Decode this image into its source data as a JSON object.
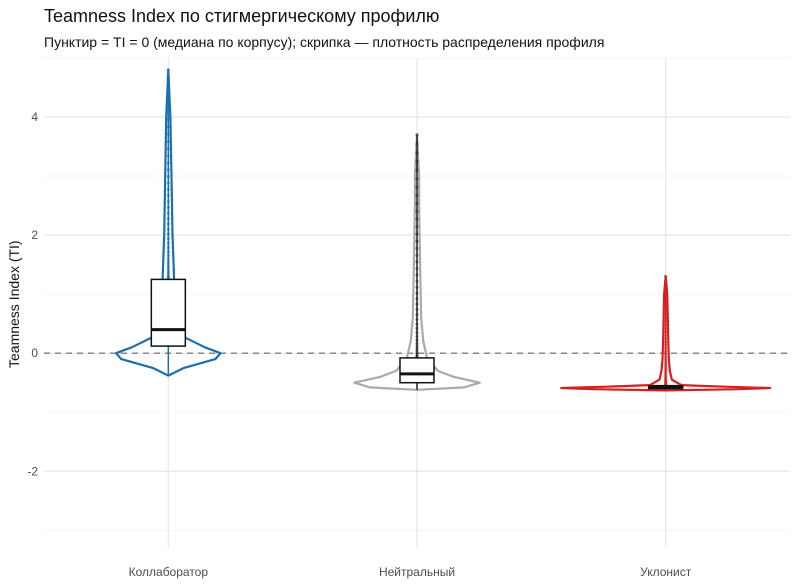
{
  "chart_data": {
    "type": "violin",
    "title": "Teamness Index по стигмергическому профилю",
    "subtitle": "Пунктир = TI = 0 (медиана по корпусу); скрипка — плотность распределения профиля",
    "xlabel": "",
    "ylabel": "Teamness Index (TI)",
    "ylim": [
      -3.3,
      5.0
    ],
    "yticks": [
      -2,
      0,
      2,
      4
    ],
    "grid": true,
    "reference_line": {
      "y": 0,
      "style": "dashed"
    },
    "categories": [
      "Коллаборатор",
      "Нейтральный",
      "Уклонист"
    ],
    "colors": {
      "Коллаборатор": "#1a6faf",
      "Нейтральный": "#aaaaaa",
      "Уклонист": "#d62020"
    },
    "series": [
      {
        "category": "Коллаборатор",
        "min": -0.38,
        "q1": 0.12,
        "median": 0.4,
        "q3": 1.25,
        "max": 4.8,
        "density_profile": [
          [
            -0.38,
            0.0
          ],
          [
            -0.25,
            0.15
          ],
          [
            -0.1,
            0.45
          ],
          [
            0.0,
            0.5
          ],
          [
            0.1,
            0.35
          ],
          [
            0.3,
            0.12
          ],
          [
            0.6,
            0.07
          ],
          [
            1.0,
            0.06
          ],
          [
            1.5,
            0.05
          ],
          [
            2.0,
            0.04
          ],
          [
            2.5,
            0.035
          ],
          [
            3.0,
            0.03
          ],
          [
            3.5,
            0.025
          ],
          [
            4.0,
            0.02
          ],
          [
            4.8,
            0.0
          ]
        ]
      },
      {
        "category": "Нейтральный",
        "min": -0.62,
        "q1": -0.5,
        "median": -0.35,
        "q3": -0.08,
        "max": 3.7,
        "density_profile": [
          [
            -0.62,
            0.0
          ],
          [
            -0.58,
            0.45
          ],
          [
            -0.5,
            0.6
          ],
          [
            -0.4,
            0.35
          ],
          [
            -0.3,
            0.2
          ],
          [
            -0.1,
            0.1
          ],
          [
            0.2,
            0.06
          ],
          [
            0.6,
            0.04
          ],
          [
            1.0,
            0.035
          ],
          [
            1.5,
            0.03
          ],
          [
            2.0,
            0.025
          ],
          [
            2.5,
            0.02
          ],
          [
            3.0,
            0.02
          ],
          [
            3.7,
            0.0
          ]
        ]
      },
      {
        "category": "Уклонист",
        "min": -0.62,
        "q1": -0.6,
        "median": -0.58,
        "q3": -0.55,
        "max": 1.3,
        "density_profile": [
          [
            -0.63,
            0.0
          ],
          [
            -0.61,
            0.7
          ],
          [
            -0.59,
            1.0
          ],
          [
            -0.57,
            0.6
          ],
          [
            -0.54,
            0.15
          ],
          [
            -0.45,
            0.06
          ],
          [
            -0.3,
            0.04
          ],
          [
            -0.1,
            0.03
          ],
          [
            0.2,
            0.025
          ],
          [
            0.6,
            0.02
          ],
          [
            1.0,
            0.015
          ],
          [
            1.3,
            0.0
          ]
        ]
      }
    ]
  }
}
